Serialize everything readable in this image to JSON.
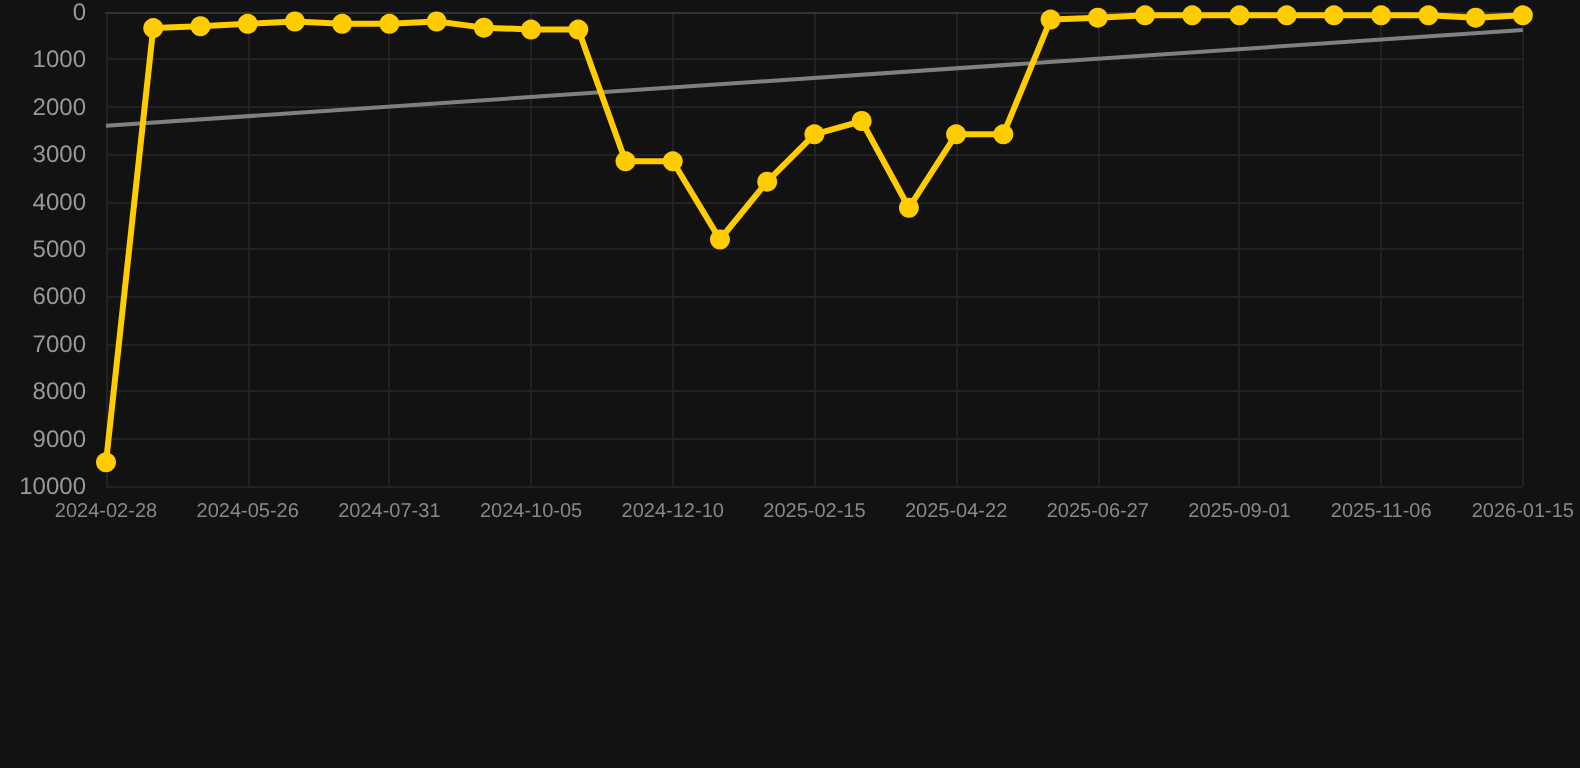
{
  "chart_data": {
    "type": "line",
    "categories": [
      "2024-02-28",
      null,
      null,
      "2024-05-26",
      null,
      null,
      "2024-07-31",
      null,
      null,
      "2024-10-05",
      null,
      null,
      "2024-12-10",
      null,
      null,
      "2025-02-15",
      null,
      null,
      "2025-04-22",
      null,
      null,
      "2025-06-27",
      null,
      null,
      "2025-09-01",
      null,
      null,
      "2025-11-06",
      null,
      null,
      "2026-01-15"
    ],
    "series": [
      {
        "color": "#ffcc00",
        "marker": "circle",
        "values": [
          9500,
          340,
          300,
          250,
          200,
          250,
          250,
          200,
          330,
          370,
          370,
          3150,
          3150,
          4800,
          3580,
          2580,
          2300,
          4130,
          2580,
          2580,
          160,
          120,
          70,
          70,
          70,
          70,
          70,
          70,
          70,
          120,
          70
        ]
      },
      {
        "color": "#808080",
        "marker": "none",
        "values": [
          2400,
          null,
          null,
          null,
          null,
          null,
          null,
          null,
          null,
          null,
          null,
          null,
          null,
          null,
          null,
          null,
          null,
          null,
          null,
          null,
          null,
          null,
          null,
          null,
          null,
          null,
          null,
          null,
          null,
          null,
          380
        ]
      }
    ],
    "ylim": [
      10000,
      0
    ],
    "yticks": [
      0,
      1000,
      2000,
      3000,
      4000,
      5000,
      6000,
      7000,
      8000,
      9000,
      10000
    ],
    "grid": true
  }
}
